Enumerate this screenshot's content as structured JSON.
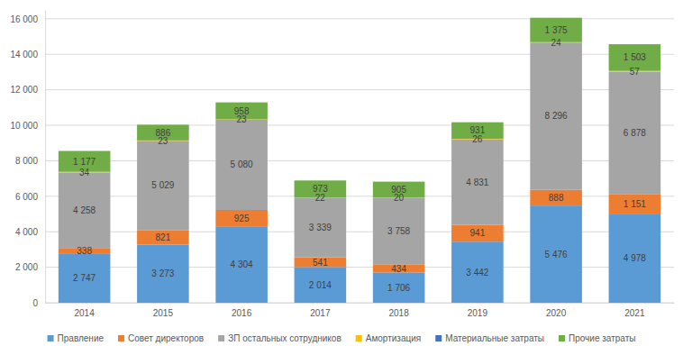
{
  "chart_data": {
    "type": "bar",
    "stacked": true,
    "data_labels": true,
    "grid": true,
    "legend": "bottom",
    "categories": [
      "2014",
      "2015",
      "2016",
      "2017",
      "2018",
      "2019",
      "2020",
      "2021"
    ],
    "ylim": [
      0,
      16500
    ],
    "yticks": [
      0,
      {
        "value": 2000,
        "label": "2 000"
      },
      {
        "value": 4000,
        "label": "4 000"
      },
      {
        "value": 6000,
        "label": "6 000"
      },
      {
        "value": 8000,
        "label": "8 000"
      },
      {
        "value": 10000,
        "label": "10 000"
      },
      {
        "value": 12000,
        "label": "12 000"
      },
      {
        "value": 14000,
        "label": "14 000"
      },
      {
        "value": 16000,
        "label": "16 000"
      }
    ],
    "series": [
      {
        "name": "Правление",
        "color": "#5b9bd5",
        "values": [
          2747,
          3273,
          4304,
          2014,
          1706,
          3442,
          5476,
          4978
        ],
        "value_labels": [
          "2 747",
          "3 273",
          "4 304",
          "2 014",
          "1 706",
          "3 442",
          "5 476",
          "4 978"
        ]
      },
      {
        "name": "Совет директоров",
        "color": "#ed7d31",
        "values": [
          338,
          821,
          925,
          541,
          434,
          941,
          888,
          1151
        ],
        "value_labels": [
          "338",
          "821",
          "925",
          "541",
          "434",
          "941",
          "888",
          "1 151"
        ]
      },
      {
        "name": "ЗП остальных сотрудников",
        "color": "#a5a5a5",
        "values": [
          4258,
          5029,
          5080,
          3339,
          3758,
          4831,
          8296,
          6878
        ],
        "value_labels": [
          "4 258",
          "5 029",
          "5 080",
          "3 339",
          "3 758",
          "4 831",
          "8 296",
          "6 878"
        ]
      },
      {
        "name": "Амортизация",
        "color": "#ffc000",
        "values": [
          34,
          23,
          23,
          22,
          20,
          26,
          24,
          57
        ]
      },
      {
        "name": "Материальные затраты",
        "color": "#4472c4",
        "values": [
          null,
          null,
          null,
          null,
          null,
          null,
          null,
          null
        ]
      },
      {
        "name": "Прочие затраты",
        "color": "#70ad47",
        "values": [
          1177,
          886,
          958,
          973,
          905,
          931,
          1375,
          1503
        ],
        "value_labels": [
          "1 177",
          "886",
          "958",
          "973",
          "905",
          "931",
          "1 375",
          "1 503"
        ]
      }
    ]
  }
}
